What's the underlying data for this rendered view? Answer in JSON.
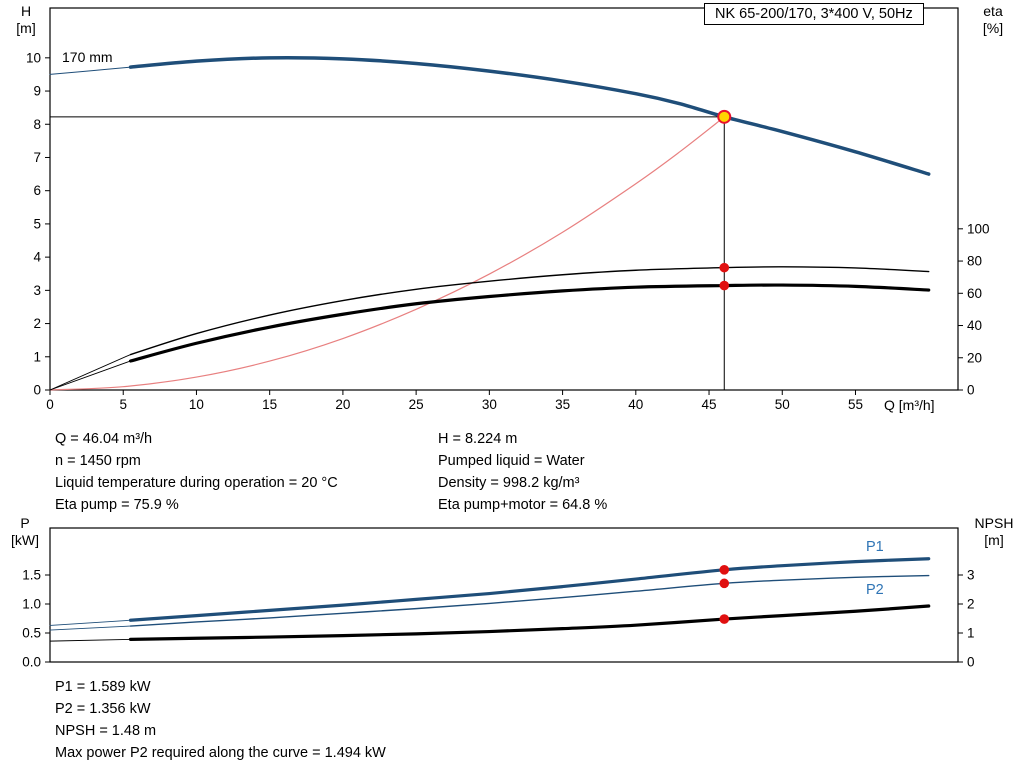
{
  "title_box": {
    "text": "NK 65-200/170, 3*400 V, 50Hz"
  },
  "top_chart": {
    "left_axis_title": "H",
    "left_axis_unit": "[m]",
    "right_axis_title": "eta",
    "right_axis_unit": "[%]",
    "x_axis_label": "Q [m³/h]",
    "impeller_label": "170 mm"
  },
  "bottom_chart": {
    "left_axis_title": "P",
    "left_axis_unit": "[kW]",
    "right_axis_title": "NPSH",
    "right_axis_unit": "[m]",
    "p1_label": "P1",
    "p2_label": "P2"
  },
  "info_block": {
    "left": [
      "Q = 46.04 m³/h",
      "n = 1450 rpm",
      "Liquid temperature during operation = 20 °C",
      "Eta pump = 75.9 %"
    ],
    "right": [
      "H = 8.224 m",
      "Pumped liquid = Water",
      "Density = 998.2 kg/m³",
      "Eta pump+motor = 64.8 %"
    ]
  },
  "result_block": [
    "P1 = 1.589 kW",
    "P2 = 1.356 kW",
    "NPSH = 1.48 m",
    "Max power P2 required along the curve = 1.494 kW"
  ],
  "colors": {
    "curve_blue": "#1f4e79",
    "label_blue": "#2e74b5",
    "system_red": "#e88080",
    "marker_red": "#e01010",
    "duty_fill": "#ffd400",
    "duty_ring": "#e8112d",
    "axis_black": "#000000"
  },
  "chart_data": [
    {
      "type": "line",
      "title": "NK 65-200/170, 3*400 V, 50Hz",
      "xlabel": "Q [m³/h]",
      "ylabel_left": "H [m]",
      "ylabel_right": "eta [%]",
      "grid": false,
      "legend": "none",
      "xlim": [
        0,
        62
      ],
      "xticks": [
        "0",
        "5",
        "10",
        "15",
        "20",
        "25",
        "30",
        "35",
        "40",
        "45",
        "50",
        "55"
      ],
      "ylim_left": [
        0,
        11.5
      ],
      "yticks_left": [
        "0",
        "1",
        "2",
        "3",
        "4",
        "5",
        "6",
        "7",
        "8",
        "9",
        "10"
      ],
      "ylim_right": [
        0,
        237
      ],
      "yticks_right": [
        "0",
        "20",
        "40",
        "60",
        "80",
        "100"
      ],
      "duty_point": {
        "q": 46.04,
        "h": 8.224
      },
      "series": [
        {
          "name": "head-curve-lead",
          "color": "#1f4e79",
          "width": 1,
          "axis": "left",
          "points": [
            [
              0,
              9.5
            ],
            [
              3,
              9.62
            ],
            [
              5.5,
              9.72
            ]
          ]
        },
        {
          "name": "head-curve-170mm",
          "color": "#1f4e79",
          "width": 3.5,
          "axis": "left",
          "points": [
            [
              5.5,
              9.72
            ],
            [
              10,
              9.9
            ],
            [
              15,
              10.0
            ],
            [
              20,
              9.97
            ],
            [
              25,
              9.83
            ],
            [
              30,
              9.6
            ],
            [
              35,
              9.3
            ],
            [
              40,
              8.92
            ],
            [
              43,
              8.62
            ],
            [
              46.04,
              8.224
            ],
            [
              50,
              7.78
            ],
            [
              55,
              7.17
            ],
            [
              60,
              6.5
            ]
          ]
        },
        {
          "name": "system-curve",
          "color": "#e88080",
          "width": 1.2,
          "axis": "left",
          "points": [
            [
              0,
              0
            ],
            [
              5,
              0.1
            ],
            [
              10,
              0.39
            ],
            [
              15,
              0.87
            ],
            [
              20,
              1.55
            ],
            [
              25,
              2.43
            ],
            [
              30,
              3.49
            ],
            [
              35,
              4.75
            ],
            [
              40,
              6.21
            ],
            [
              43,
              7.17
            ],
            [
              46.04,
              8.22
            ]
          ]
        },
        {
          "name": "eta-pump-lead",
          "color": "#000000",
          "width": 0.9,
          "axis": "right",
          "points": [
            [
              0,
              0
            ],
            [
              5.5,
              22
            ]
          ]
        },
        {
          "name": "eta-pump-curve",
          "color": "#000000",
          "width": 1.4,
          "axis": "right",
          "points": [
            [
              5.5,
              22
            ],
            [
              10,
              35
            ],
            [
              15,
              46.5
            ],
            [
              20,
              55.5
            ],
            [
              25,
              62.5
            ],
            [
              30,
              67.5
            ],
            [
              35,
              71.5
            ],
            [
              40,
              74.3
            ],
            [
              46.04,
              75.9
            ],
            [
              50,
              76.4
            ],
            [
              55,
              75.7
            ],
            [
              60,
              73.5
            ]
          ]
        },
        {
          "name": "eta-pump-motor-lead",
          "color": "#000000",
          "width": 0.9,
          "axis": "right",
          "points": [
            [
              0,
              0
            ],
            [
              5.5,
              18
            ]
          ]
        },
        {
          "name": "eta-pump-motor-curve",
          "color": "#000000",
          "width": 3.2,
          "axis": "right",
          "points": [
            [
              5.5,
              18
            ],
            [
              10,
              29
            ],
            [
              15,
              39
            ],
            [
              20,
              47
            ],
            [
              25,
              53.5
            ],
            [
              30,
              58
            ],
            [
              35,
              61.5
            ],
            [
              40,
              63.8
            ],
            [
              46.04,
              64.8
            ],
            [
              50,
              65.1
            ],
            [
              55,
              64.3
            ],
            [
              60,
              62
            ]
          ]
        }
      ],
      "markers": [
        {
          "x": 46.04,
          "y": 75.9,
          "axis": "right"
        },
        {
          "x": 46.04,
          "y": 64.8,
          "axis": "right"
        }
      ]
    },
    {
      "type": "line",
      "title": "",
      "xlabel": "",
      "ylabel_left": "P [kW]",
      "ylabel_right": "NPSH [m]",
      "grid": false,
      "legend": "none",
      "xlim": [
        0,
        62
      ],
      "ylim_left": [
        0,
        2.31
      ],
      "yticks_left": [
        "0.0",
        "0.5",
        "1.0",
        "1.5"
      ],
      "ylim_right": [
        0,
        4.62
      ],
      "yticks_right": [
        "0",
        "1",
        "2",
        "3"
      ],
      "series": [
        {
          "name": "p1-lead",
          "color": "#1f4e79",
          "width": 0.9,
          "axis": "left",
          "points": [
            [
              0,
              0.63
            ],
            [
              5.5,
              0.72
            ]
          ]
        },
        {
          "name": "p1-curve",
          "color": "#1f4e79",
          "width": 3.2,
          "axis": "left",
          "points": [
            [
              5.5,
              0.72
            ],
            [
              10,
              0.8
            ],
            [
              15,
              0.89
            ],
            [
              20,
              0.98
            ],
            [
              25,
              1.08
            ],
            [
              30,
              1.18
            ],
            [
              35,
              1.3
            ],
            [
              40,
              1.43
            ],
            [
              46.04,
              1.589
            ],
            [
              50,
              1.66
            ],
            [
              55,
              1.73
            ],
            [
              60,
              1.78
            ]
          ]
        },
        {
          "name": "p2-lead",
          "color": "#1f4e79",
          "width": 0.9,
          "axis": "left",
          "points": [
            [
              0,
              0.55
            ],
            [
              5.5,
              0.62
            ]
          ]
        },
        {
          "name": "p2-curve",
          "color": "#1f4e79",
          "width": 1.4,
          "axis": "left",
          "points": [
            [
              5.5,
              0.62
            ],
            [
              10,
              0.69
            ],
            [
              15,
              0.76
            ],
            [
              20,
              0.84
            ],
            [
              25,
              0.92
            ],
            [
              30,
              1.01
            ],
            [
              35,
              1.11
            ],
            [
              40,
              1.22
            ],
            [
              46.04,
              1.356
            ],
            [
              50,
              1.41
            ],
            [
              55,
              1.46
            ],
            [
              60,
              1.49
            ]
          ]
        },
        {
          "name": "npsh-lead",
          "color": "#000000",
          "width": 0.9,
          "axis": "right",
          "points": [
            [
              0,
              0.72
            ],
            [
              5.5,
              0.78
            ]
          ]
        },
        {
          "name": "npsh-curve",
          "color": "#000000",
          "width": 3.2,
          "axis": "right",
          "points": [
            [
              5.5,
              0.78
            ],
            [
              10,
              0.82
            ],
            [
              15,
              0.86
            ],
            [
              20,
              0.91
            ],
            [
              25,
              0.97
            ],
            [
              30,
              1.05
            ],
            [
              35,
              1.15
            ],
            [
              40,
              1.27
            ],
            [
              46.04,
              1.48
            ],
            [
              50,
              1.6
            ],
            [
              55,
              1.75
            ],
            [
              60,
              1.93
            ]
          ]
        }
      ],
      "markers": [
        {
          "x": 46.04,
          "y": 1.589,
          "axis": "left"
        },
        {
          "x": 46.04,
          "y": 1.356,
          "axis": "left"
        },
        {
          "x": 46.04,
          "y": 1.48,
          "axis": "right"
        }
      ]
    }
  ]
}
